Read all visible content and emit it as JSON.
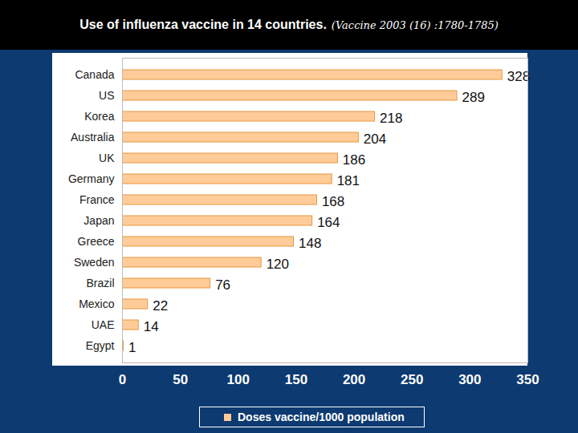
{
  "chart_data": {
    "type": "bar",
    "title": "Use of influenza vaccine in 14 countries.",
    "subtitle": "(Vaccine 2003 (16) :1780-1785)",
    "orientation": "horizontal",
    "categories": [
      "Canada",
      "US",
      "Korea",
      "Australia",
      "UK",
      "Germany",
      "France",
      "Japan",
      "Greece",
      "Sweden",
      "Brazil",
      "Mexico",
      "UAE",
      "Egypt"
    ],
    "series": [
      {
        "name": "Doses vaccine/1000 population",
        "color": "#FFCC99",
        "values": [
          328,
          289,
          218,
          204,
          186,
          181,
          168,
          164,
          148,
          120,
          76,
          22,
          14,
          1
        ]
      }
    ],
    "xlim": [
      0,
      350
    ],
    "xticks": [
      0,
      50,
      100,
      150,
      200,
      250,
      300,
      350
    ],
    "data_labels": true,
    "legend": "bottom",
    "grid": false
  }
}
